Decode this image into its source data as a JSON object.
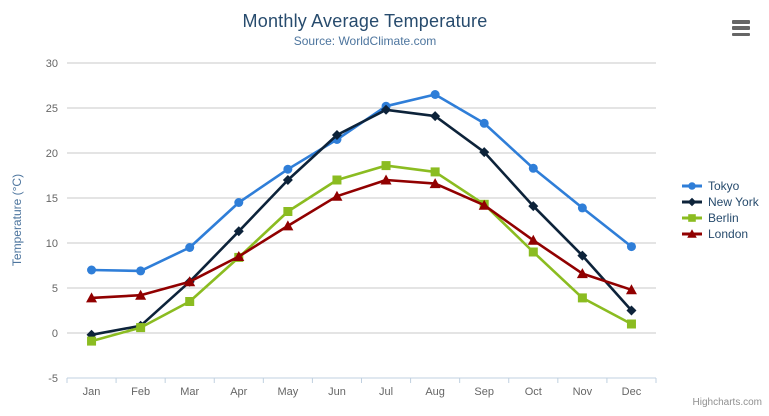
{
  "header": {
    "title": "Monthly Average Temperature",
    "subtitle": "Source: WorldClimate.com"
  },
  "credits": "Highcharts.com",
  "context_menu": {
    "icon": "hamburger-icon"
  },
  "palette": {
    "title_color": "#274b6d",
    "subtitle_color": "#4d759e",
    "axis_label_color": "#666666",
    "axis_title_color": "#4d759e",
    "gridline_color": "#c8c8c8",
    "axis_line_color": "#c0d0e0",
    "legend_text_color": "#274b6d",
    "credits_color": "#909090",
    "menu_icon_color": "#666666"
  },
  "chart_data": {
    "type": "line",
    "title": "Monthly Average Temperature",
    "subtitle": "Source: WorldClimate.com",
    "categories": [
      "Jan",
      "Feb",
      "Mar",
      "Apr",
      "May",
      "Jun",
      "Jul",
      "Aug",
      "Sep",
      "Oct",
      "Nov",
      "Dec"
    ],
    "xlabel": "",
    "ylabel": "Temperature (°C)",
    "ylim": [
      -5,
      30
    ],
    "ytick_step": 5,
    "ytick_labels": [
      "-5",
      "0",
      "5",
      "10",
      "15",
      "20",
      "25",
      "30"
    ],
    "grid": "horizontal",
    "legend_position": "right",
    "series": [
      {
        "name": "Tokyo",
        "color": "#2f7ed8",
        "marker": "circle",
        "values": [
          7.0,
          6.9,
          9.5,
          14.5,
          18.2,
          21.5,
          25.2,
          26.5,
          23.3,
          18.3,
          13.9,
          9.6
        ]
      },
      {
        "name": "New York",
        "color": "#0d233a",
        "marker": "diamond",
        "values": [
          -0.2,
          0.8,
          5.7,
          11.3,
          17.0,
          22.0,
          24.8,
          24.1,
          20.1,
          14.1,
          8.6,
          2.5
        ]
      },
      {
        "name": "Berlin",
        "color": "#8bbc21",
        "marker": "square",
        "values": [
          -0.9,
          0.6,
          3.5,
          8.4,
          13.5,
          17.0,
          18.6,
          17.9,
          14.3,
          9.0,
          3.9,
          1.0
        ]
      },
      {
        "name": "London",
        "color": "#910000",
        "marker": "triangle",
        "values": [
          3.9,
          4.2,
          5.7,
          8.5,
          11.9,
          15.2,
          17.0,
          16.6,
          14.2,
          10.3,
          6.6,
          4.8
        ]
      }
    ]
  }
}
